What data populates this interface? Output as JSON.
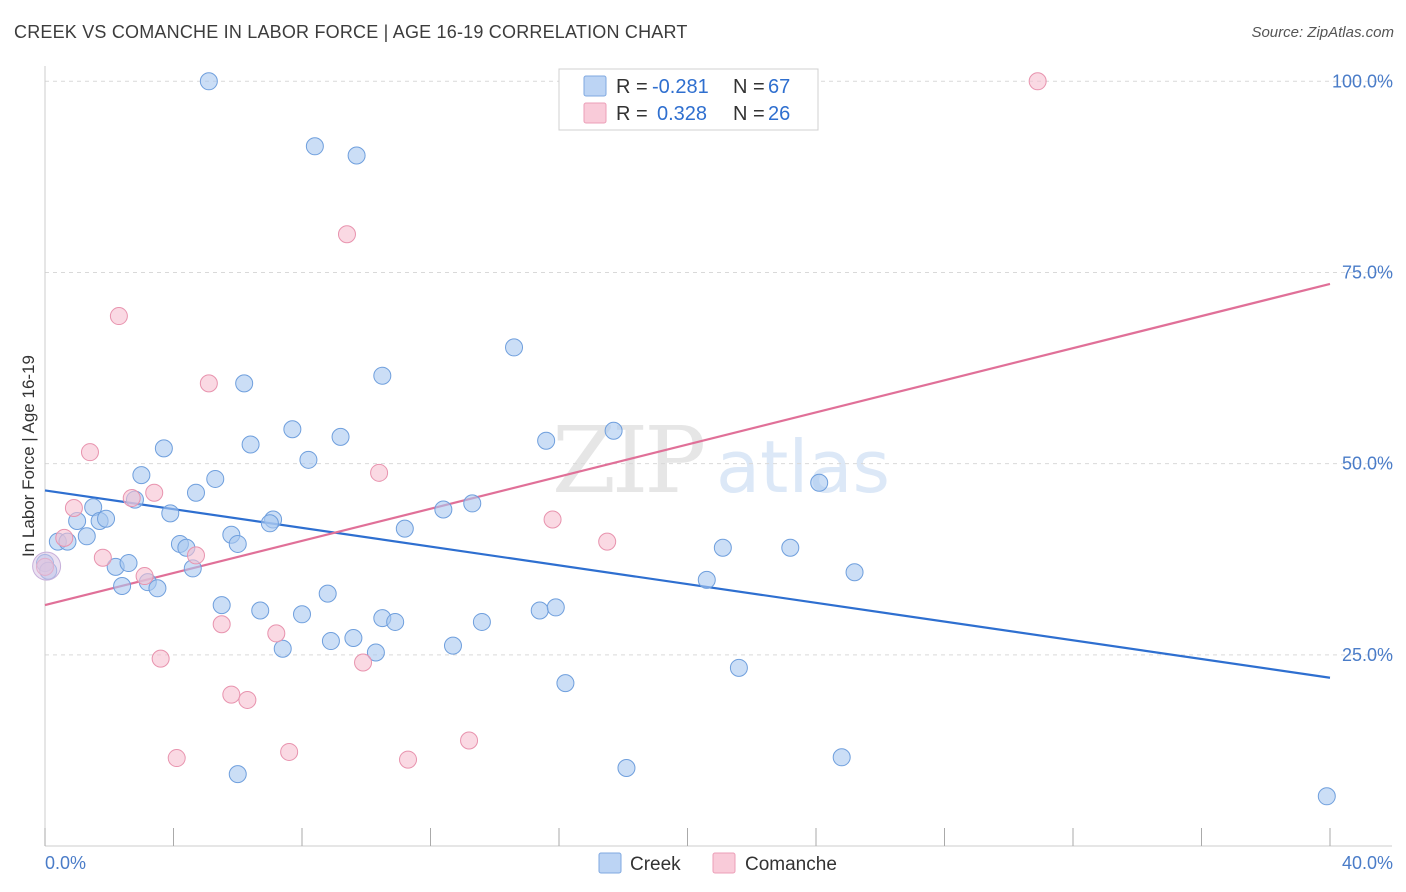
{
  "title": "CREEK VS COMANCHE IN LABOR FORCE | AGE 16-19 CORRELATION CHART",
  "source": "Source: ZipAtlas.com",
  "watermark": {
    "zip": "ZIP",
    "atlas": "atlas"
  },
  "colors": {
    "creek_fill": "#a9c8f0",
    "creek_stroke": "#6f9fdd",
    "creek_line": "#2e6fd0",
    "comanche_fill": "#f7bfd0",
    "comanche_stroke": "#e893ae",
    "comanche_line": "#e07098",
    "grid": "#d9d9d9",
    "tick_label": "#4a7cc8"
  },
  "legend": {
    "rows": [
      {
        "series": "Creek",
        "r_label": "R =",
        "r_value": "-0.281",
        "n_label": "N =",
        "n_value": "67"
      },
      {
        "series": "Comanche",
        "r_label": "R =",
        "r_value": "0.328",
        "n_label": "N =",
        "n_value": "26"
      }
    ]
  },
  "chart_data": {
    "type": "scatter",
    "title": "CREEK VS COMANCHE IN LABOR FORCE | AGE 16-19 CORRELATION CHART",
    "xlabel": "",
    "ylabel": "In Labor Force | Age 16-19",
    "xlim": [
      0,
      40
    ],
    "ylim": [
      0,
      102
    ],
    "x_tick_labels": [
      "0.0%",
      "40.0%"
    ],
    "y_ticks": [
      25,
      50,
      75,
      100
    ],
    "y_tick_labels": [
      "25.0%",
      "50.0%",
      "75.0%",
      "100.0%"
    ],
    "grid": true,
    "legend_position": "top-center",
    "series": [
      {
        "name": "Creek",
        "trend": {
          "x": [
            0,
            40
          ],
          "y": [
            46.5,
            22.0
          ]
        },
        "points": [
          [
            5.1,
            100
          ],
          [
            8.4,
            91.5
          ],
          [
            9.7,
            90.3
          ],
          [
            14.6,
            65.2
          ],
          [
            10.5,
            61.5
          ],
          [
            6.2,
            60.5
          ],
          [
            7.7,
            54.5
          ],
          [
            9.2,
            53.5
          ],
          [
            15.6,
            53
          ],
          [
            17.7,
            54.3
          ],
          [
            3.7,
            52
          ],
          [
            6.4,
            52.5
          ],
          [
            8.2,
            50.5
          ],
          [
            3.0,
            48.5
          ],
          [
            5.3,
            48
          ],
          [
            24.1,
            47.5
          ],
          [
            4.7,
            46.2
          ],
          [
            2.8,
            45.3
          ],
          [
            1.5,
            44.3
          ],
          [
            12.4,
            44
          ],
          [
            13.3,
            44.8
          ],
          [
            3.9,
            43.5
          ],
          [
            1.0,
            42.5
          ],
          [
            1.7,
            42.5
          ],
          [
            1.9,
            42.8
          ],
          [
            7.1,
            42.7
          ],
          [
            7.0,
            42.2
          ],
          [
            11.2,
            41.5
          ],
          [
            5.8,
            40.7
          ],
          [
            1.3,
            40.5
          ],
          [
            0.4,
            39.8
          ],
          [
            0.7,
            39.8
          ],
          [
            4.2,
            39.5
          ],
          [
            4.4,
            39.0
          ],
          [
            6.0,
            39.5
          ],
          [
            21.1,
            39.0
          ],
          [
            23.2,
            39.0
          ],
          [
            2.2,
            36.5
          ],
          [
            2.6,
            37.0
          ],
          [
            4.6,
            36.3
          ],
          [
            25.2,
            35.8
          ],
          [
            20.6,
            34.8
          ],
          [
            3.2,
            34.5
          ],
          [
            2.4,
            34.0
          ],
          [
            3.5,
            33.7
          ],
          [
            8.8,
            33.0
          ],
          [
            5.5,
            31.5
          ],
          [
            6.7,
            30.8
          ],
          [
            8.0,
            30.3
          ],
          [
            15.4,
            30.8
          ],
          [
            15.9,
            31.2
          ],
          [
            10.5,
            29.8
          ],
          [
            10.9,
            29.3
          ],
          [
            13.6,
            29.3
          ],
          [
            9.6,
            27.2
          ],
          [
            8.9,
            26.8
          ],
          [
            12.7,
            26.2
          ],
          [
            7.4,
            25.8
          ],
          [
            10.3,
            25.3
          ],
          [
            21.6,
            23.3
          ],
          [
            16.2,
            21.3
          ],
          [
            24.8,
            11.6
          ],
          [
            18.1,
            10.2
          ],
          [
            6.0,
            9.4
          ],
          [
            0.0,
            37.0
          ],
          [
            39.9,
            6.5
          ],
          [
            0.1,
            36.0
          ]
        ]
      },
      {
        "name": "Comanche",
        "trend": {
          "x": [
            0,
            40
          ],
          "y": [
            31.5,
            73.5
          ]
        },
        "points": [
          [
            30.9,
            100
          ],
          [
            9.4,
            80.0
          ],
          [
            2.3,
            69.3
          ],
          [
            5.1,
            60.5
          ],
          [
            1.4,
            51.5
          ],
          [
            10.4,
            48.8
          ],
          [
            3.4,
            46.2
          ],
          [
            2.7,
            45.5
          ],
          [
            0.9,
            44.2
          ],
          [
            15.8,
            42.7
          ],
          [
            0.6,
            40.3
          ],
          [
            17.5,
            39.8
          ],
          [
            4.7,
            38.0
          ],
          [
            1.8,
            37.7
          ],
          [
            3.1,
            35.3
          ],
          [
            0.0,
            36.5
          ],
          [
            5.5,
            29.0
          ],
          [
            7.2,
            27.8
          ],
          [
            3.6,
            24.5
          ],
          [
            9.9,
            24.0
          ],
          [
            5.8,
            19.8
          ],
          [
            6.3,
            19.1
          ],
          [
            13.2,
            13.8
          ],
          [
            7.6,
            12.3
          ],
          [
            4.1,
            11.5
          ],
          [
            11.3,
            11.3
          ]
        ]
      }
    ]
  },
  "bottom_legend": [
    {
      "label": "Creek"
    },
    {
      "label": "Comanche"
    }
  ]
}
